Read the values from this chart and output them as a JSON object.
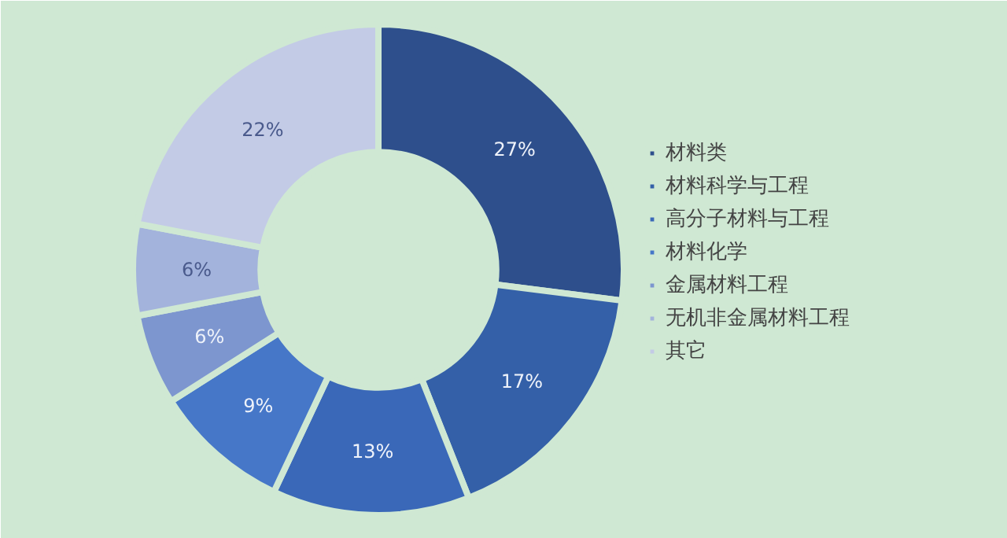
{
  "chart_data": {
    "type": "donut",
    "categories": [
      "材料类",
      "材料科学与工程",
      "高分子材料与工程",
      "材料化学",
      "金属材料工程",
      "无机非金属材料工程",
      "其它"
    ],
    "values": [
      27,
      17,
      13,
      9,
      6,
      6,
      22
    ],
    "colors": [
      "#2e4f8c",
      "#3460a8",
      "#3a68b8",
      "#4677c8",
      "#7d96cf",
      "#a3b3dc",
      "#c3cbe6"
    ],
    "value_labels": [
      "27%",
      "17%",
      "13%",
      "9%",
      "6%",
      "6%",
      "22%"
    ],
    "legend": "right"
  }
}
